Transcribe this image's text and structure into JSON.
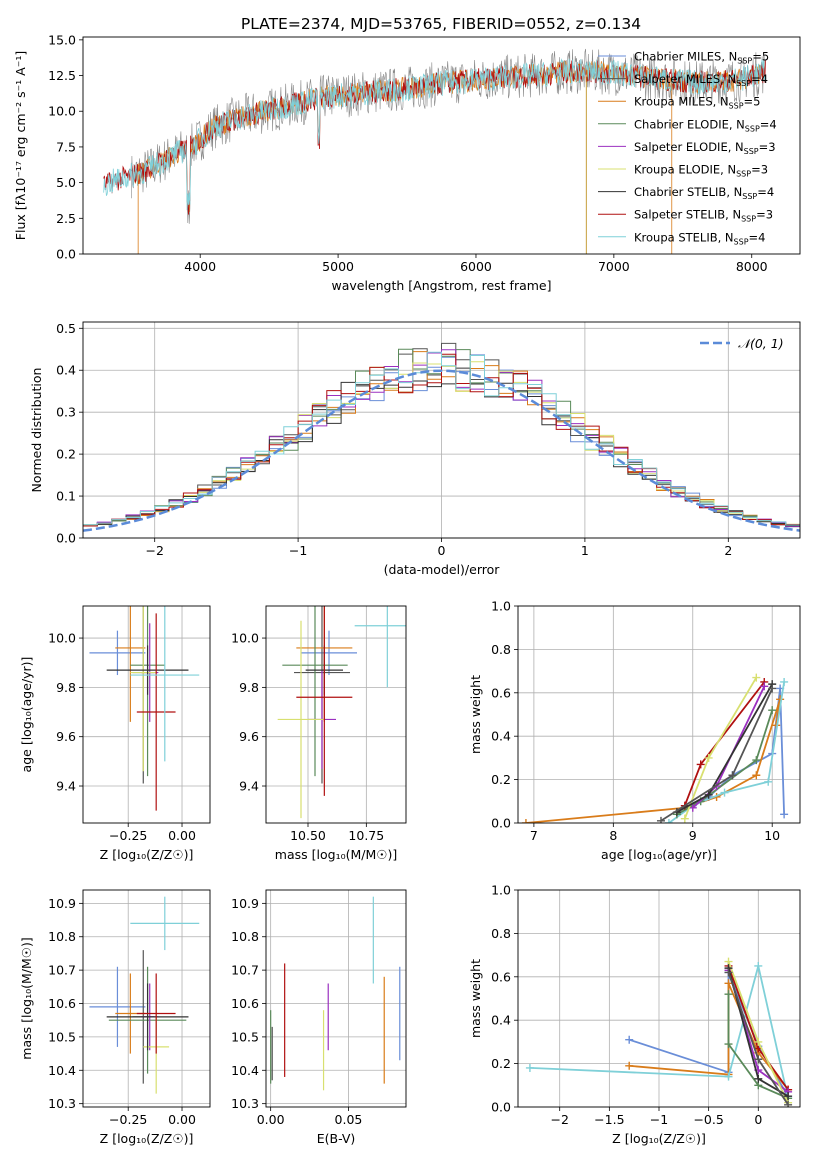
{
  "figure": {
    "title": "PLATE=2374, MJD=53765, FIBERID=0552, z=0.134"
  },
  "legend_models": [
    {
      "imf": "Chabrier",
      "lib": "MILES",
      "n": "5",
      "color": "#6a8ed8"
    },
    {
      "imf": "Salpeter",
      "lib": "MILES",
      "n": "4",
      "color": "#555555"
    },
    {
      "imf": "Kroupa",
      "lib": "MILES",
      "n": "5",
      "color": "#d97c1a"
    },
    {
      "imf": "Chabrier",
      "lib": "ELODIE",
      "n": "4",
      "color": "#5a8a5a"
    },
    {
      "imf": "Salpeter",
      "lib": "ELODIE",
      "n": "3",
      "color": "#9b30c0"
    },
    {
      "imf": "Kroupa",
      "lib": "ELODIE",
      "n": "3",
      "color": "#d8e070"
    },
    {
      "imf": "Chabrier",
      "lib": "STELIB",
      "n": "4",
      "color": "#333333"
    },
    {
      "imf": "Salpeter",
      "lib": "STELIB",
      "n": "3",
      "color": "#b01010"
    },
    {
      "imf": "Kroupa",
      "lib": "STELIB",
      "n": "4",
      "color": "#7fd0d8"
    }
  ],
  "chart_data": [
    {
      "id": "spectrum",
      "type": "line",
      "xlabel": "wavelength [Angstrom, rest frame]",
      "ylabel": "Flux [fλ10⁻¹⁷ erg cm⁻² s⁻¹ A⁻¹]",
      "xlim": [
        3150,
        8350
      ],
      "ylim": [
        0,
        15.2
      ],
      "xticks": [
        4000,
        5000,
        6000,
        7000,
        8000
      ],
      "yticks": [
        0.0,
        2.5,
        5.0,
        7.5,
        10.0,
        12.5,
        15.0
      ],
      "continuum": {
        "x": [
          3300,
          3400,
          3600,
          3800,
          3950,
          4100,
          4300,
          4600,
          4900,
          5200,
          5500,
          5800,
          6100,
          6400,
          6700,
          7000,
          7300,
          7600,
          7900,
          8100
        ],
        "y": [
          4.8,
          5.2,
          5.8,
          6.9,
          7.6,
          8.9,
          9.6,
          10.3,
          11.0,
          11.3,
          11.6,
          12.0,
          12.3,
          12.5,
          12.8,
          12.7,
          12.3,
          12.0,
          12.2,
          12.8
        ]
      },
      "series_color": "#7fd0d8",
      "noise_color": "#888888"
    },
    {
      "id": "residuals",
      "type": "bar",
      "xlabel": "(data-model)/error",
      "ylabel": "Normed distribution",
      "xlim": [
        -2.5,
        2.5
      ],
      "ylim": [
        0,
        0.515
      ],
      "xticks": [
        -2,
        -1,
        0,
        1,
        2
      ],
      "yticks": [
        0.0,
        0.1,
        0.2,
        0.3,
        0.4,
        0.5
      ],
      "bin_width": 0.1,
      "reference_label": "𝒩(0, 1)",
      "reference_color": "#5b8bd8"
    },
    {
      "id": "Z-age",
      "type": "scatter",
      "xlabel": "Z [log₁₀(Z/Z☉)]",
      "ylabel": "age  [log₁₀(age/yr)]",
      "xlim": [
        -0.46,
        0.13
      ],
      "ylim": [
        9.25,
        10.13
      ],
      "xticks": [
        -0.25,
        0.0
      ],
      "yticks": [
        9.4,
        9.6,
        9.8,
        10.0
      ],
      "points": [
        {
          "model": 0,
          "x": -0.3,
          "xerr": 0.13,
          "y": 9.94,
          "yerr": 0.09
        },
        {
          "model": 1,
          "x": -0.18,
          "xerr": 0.05,
          "y": 9.86,
          "yerr": 0.45
        },
        {
          "model": 2,
          "x": -0.24,
          "xerr": 0.07,
          "y": 9.96,
          "yerr": 0.3
        },
        {
          "model": 3,
          "x": -0.16,
          "xerr": 0.08,
          "y": 9.89,
          "yerr": 0.45
        },
        {
          "model": 4,
          "x": -0.15,
          "xerr": 0.04,
          "y": 9.86,
          "yerr": 0.2
        },
        {
          "model": 5,
          "x": -0.18,
          "xerr": 0.06,
          "y": 9.86,
          "yerr": 0.4
        },
        {
          "model": 6,
          "x": -0.16,
          "xerr": 0.19,
          "y": 9.87,
          "yerr": 0.1
        },
        {
          "model": 7,
          "x": -0.12,
          "xerr": 0.09,
          "y": 9.7,
          "yerr": 0.4
        },
        {
          "model": 8,
          "x": -0.08,
          "xerr": 0.16,
          "y": 9.85,
          "yerr": 0.35
        }
      ]
    },
    {
      "id": "mass-age",
      "type": "scatter",
      "xlabel": "mass [log₁₀(M/M☉)]",
      "ylabel": "",
      "xlim": [
        10.32,
        10.92
      ],
      "ylim": [
        9.25,
        10.13
      ],
      "xticks": [
        10.5,
        10.75
      ],
      "yticks": [
        9.4,
        9.6,
        9.8,
        10.0
      ],
      "points": [
        {
          "model": 0,
          "x": 10.59,
          "xerr": 0.12,
          "y": 9.94,
          "yerr": 0.09
        },
        {
          "model": 1,
          "x": 10.56,
          "xerr": 0.12,
          "y": 9.86,
          "yerr": 0.45
        },
        {
          "model": 2,
          "x": 10.57,
          "xerr": 0.12,
          "y": 9.96,
          "yerr": 0.3
        },
        {
          "model": 3,
          "x": 10.53,
          "xerr": 0.14,
          "y": 9.89,
          "yerr": 0.45
        },
        {
          "model": 4,
          "x": 10.56,
          "xerr": 0.06,
          "y": 9.67,
          "yerr": 0.2
        },
        {
          "model": 5,
          "x": 10.47,
          "xerr": 0.1,
          "y": 9.67,
          "yerr": 0.4
        },
        {
          "model": 6,
          "x": 10.57,
          "xerr": 0.08,
          "y": 9.87,
          "yerr": 0.1
        },
        {
          "model": 7,
          "x": 10.57,
          "xerr": 0.12,
          "y": 9.76,
          "yerr": 0.4
        },
        {
          "model": 8,
          "x": 10.84,
          "xerr": 0.14,
          "y": 10.05,
          "yerr": 0.25
        }
      ]
    },
    {
      "id": "age-weight",
      "type": "line",
      "xlabel": "age  [log₁₀(age/yr)]",
      "ylabel": "mass weight",
      "xlim": [
        6.8,
        10.35
      ],
      "ylim": [
        0,
        1.0
      ],
      "xticks": [
        7,
        8,
        9,
        10
      ],
      "yticks": [
        0.0,
        0.2,
        0.4,
        0.6,
        0.8,
        1.0
      ],
      "series": [
        {
          "model": 0,
          "x": [
            8.9,
            9.2,
            9.5,
            10.0,
            10.1,
            10.15
          ],
          "y": [
            0.07,
            0.12,
            0.22,
            0.32,
            0.62,
            0.04
          ]
        },
        {
          "model": 2,
          "x": [
            6.9,
            8.9,
            9.3,
            9.8,
            10.1,
            10.05
          ],
          "y": [
            0.0,
            0.07,
            0.12,
            0.22,
            0.57,
            0.45
          ]
        },
        {
          "model": 8,
          "x": [
            8.7,
            9.0,
            9.4,
            9.95,
            10.15
          ],
          "y": [
            0.0,
            0.08,
            0.14,
            0.19,
            0.65
          ]
        },
        {
          "model": 3,
          "x": [
            8.8,
            9.1,
            9.8,
            10.0
          ],
          "y": [
            0.04,
            0.1,
            0.29,
            0.52
          ]
        },
        {
          "model": 7,
          "x": [
            8.9,
            9.1,
            9.9
          ],
          "y": [
            0.08,
            0.27,
            0.65
          ]
        },
        {
          "model": 4,
          "x": [
            9.0,
            9.3,
            9.9
          ],
          "y": [
            0.07,
            0.17,
            0.63
          ]
        },
        {
          "model": 5,
          "x": [
            8.9,
            9.2,
            9.8
          ],
          "y": [
            0.02,
            0.3,
            0.67
          ]
        },
        {
          "model": 6,
          "x": [
            8.8,
            9.2,
            10.0
          ],
          "y": [
            0.05,
            0.13,
            0.64
          ]
        },
        {
          "model": 1,
          "x": [
            8.6,
            9.5,
            10.0
          ],
          "y": [
            0.01,
            0.22,
            0.62
          ]
        }
      ]
    },
    {
      "id": "Z-mass",
      "type": "scatter",
      "xlabel": "Z [log₁₀(Z/Z☉)]",
      "ylabel": "mass [log₁₀(M/M☉)]",
      "xlim": [
        -0.46,
        0.13
      ],
      "ylim": [
        10.29,
        10.94
      ],
      "xticks": [
        -0.25,
        0.0
      ],
      "yticks": [
        10.3,
        10.4,
        10.5,
        10.6,
        10.7,
        10.8,
        10.9
      ],
      "points": [
        {
          "model": 0,
          "x": -0.3,
          "xerr": 0.13,
          "y": 10.59,
          "yerr": 0.12
        },
        {
          "model": 1,
          "x": -0.18,
          "xerr": 0.05,
          "y": 10.56,
          "yerr": 0.2
        },
        {
          "model": 2,
          "x": -0.24,
          "xerr": 0.07,
          "y": 10.57,
          "yerr": 0.12
        },
        {
          "model": 3,
          "x": -0.16,
          "xerr": 0.18,
          "y": 10.55,
          "yerr": 0.16
        },
        {
          "model": 4,
          "x": -0.15,
          "xerr": 0.04,
          "y": 10.56,
          "yerr": 0.1
        },
        {
          "model": 5,
          "x": -0.12,
          "xerr": 0.06,
          "y": 10.47,
          "yerr": 0.14
        },
        {
          "model": 6,
          "x": -0.16,
          "xerr": 0.19,
          "y": 10.56,
          "yerr": 0.1
        },
        {
          "model": 7,
          "x": -0.12,
          "xerr": 0.09,
          "y": 10.57,
          "yerr": 0.12
        },
        {
          "model": 8,
          "x": -0.08,
          "xerr": 0.16,
          "y": 10.84,
          "yerr": 0.08
        }
      ]
    },
    {
      "id": "EBV-mass",
      "type": "scatter",
      "xlabel": "E(B-V)",
      "ylabel": "",
      "xlim": [
        -0.003,
        0.087
      ],
      "ylim": [
        10.29,
        10.94
      ],
      "xticks": [
        0.0,
        0.05
      ],
      "yticks": [
        10.3,
        10.4,
        10.5,
        10.6,
        10.7,
        10.8,
        10.9
      ],
      "xtick_labels": [
        "0.00",
        "0.05"
      ],
      "points": [
        {
          "model": 0,
          "x": 0.083,
          "y": 10.57,
          "yerr": 0.14
        },
        {
          "model": 2,
          "x": 0.073,
          "y": 10.52,
          "yerr": 0.16
        },
        {
          "model": 8,
          "x": 0.066,
          "y": 10.79,
          "yerr": 0.13
        },
        {
          "model": 5,
          "x": 0.034,
          "y": 10.46,
          "yerr": 0.12
        },
        {
          "model": 4,
          "x": 0.037,
          "y": 10.56,
          "yerr": 0.1
        },
        {
          "model": 7,
          "x": 0.009,
          "y": 10.55,
          "yerr": 0.17
        },
        {
          "model": 3,
          "x": 0.0,
          "y": 10.47,
          "yerr": 0.11
        },
        {
          "model": 1,
          "x": 0.001,
          "y": 10.45,
          "yerr": 0.08
        }
      ]
    },
    {
      "id": "Z-weight",
      "type": "line",
      "xlabel": "Z [log₁₀(Z/Z☉)]",
      "ylabel": "mass weight",
      "xlim": [
        -2.42,
        0.42
      ],
      "ylim": [
        0,
        1.0
      ],
      "xticks": [
        -2.0,
        -1.5,
        -1.0,
        -0.5,
        0.0
      ],
      "yticks": [
        0.0,
        0.2,
        0.4,
        0.6,
        0.8,
        1.0
      ],
      "series": [
        {
          "model": 0,
          "x": [
            -1.3,
            -0.3,
            -0.3,
            0.0,
            0.3
          ],
          "y": [
            0.31,
            0.16,
            0.62,
            0.28,
            0.05
          ]
        },
        {
          "model": 2,
          "x": [
            -1.3,
            -0.3,
            -0.3,
            0.0,
            0.3
          ],
          "y": [
            0.19,
            0.15,
            0.57,
            0.25,
            0.08
          ]
        },
        {
          "model": 8,
          "x": [
            -2.3,
            -0.3,
            0.0,
            0.3
          ],
          "y": [
            0.18,
            0.14,
            0.65,
            0.04
          ]
        },
        {
          "model": 3,
          "x": [
            -0.3,
            -0.3,
            0.0,
            0.3
          ],
          "y": [
            0.52,
            0.29,
            0.1,
            0.04
          ]
        },
        {
          "model": 7,
          "x": [
            -0.3,
            0.0,
            0.3
          ],
          "y": [
            0.65,
            0.27,
            0.08
          ]
        },
        {
          "model": 4,
          "x": [
            -0.3,
            0.0,
            0.3
          ],
          "y": [
            0.63,
            0.17,
            0.07
          ]
        },
        {
          "model": 5,
          "x": [
            -0.3,
            0.0,
            0.3
          ],
          "y": [
            0.67,
            0.3,
            0.02
          ]
        },
        {
          "model": 6,
          "x": [
            -0.3,
            0.0,
            0.3
          ],
          "y": [
            0.64,
            0.13,
            0.05
          ]
        },
        {
          "model": 1,
          "x": [
            -0.3,
            0.0,
            0.3
          ],
          "y": [
            0.62,
            0.22,
            0.01
          ]
        }
      ]
    }
  ]
}
